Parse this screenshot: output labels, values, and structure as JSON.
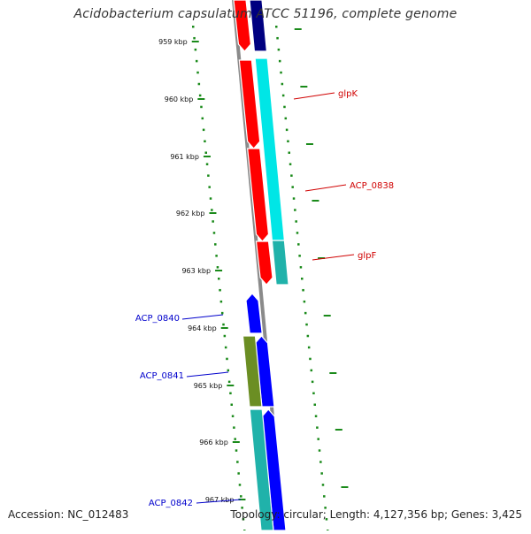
{
  "title": "Acidobacterium capsulatum ATCC 51196, complete genome",
  "footer": {
    "accession": "Accession: NC_012483",
    "summary": "Topology: circular; Length: 4,127,356 bp; Genes: 3,425"
  },
  "colors": {
    "backbone": "#8a8a8a",
    "tick": "#1a8a1a",
    "forward_red": "#ff0000",
    "forward_label": "#d00000",
    "reverse_blue": "#0000ff",
    "reverse_label": "#0000cc",
    "navy": "#000080",
    "cyan": "#00e6e6",
    "teal": "#20b2aa",
    "olive": "#6b8e23"
  },
  "ticks": [
    "959 kbp",
    "960 kbp",
    "961 kbp",
    "962 kbp",
    "963 kbp",
    "964 kbp",
    "965 kbp",
    "966 kbp",
    "967 kbp"
  ],
  "gene_labels": [
    {
      "id": "glpK",
      "text": "glpK",
      "side": "right",
      "strand": "forward"
    },
    {
      "id": "acp0838",
      "text": "ACP_0838",
      "side": "right",
      "strand": "forward"
    },
    {
      "id": "glpF",
      "text": "glpF",
      "side": "right",
      "strand": "forward"
    },
    {
      "id": "acp0840",
      "text": "ACP_0840",
      "side": "left",
      "strand": "reverse"
    },
    {
      "id": "acp0841",
      "text": "ACP_0841",
      "side": "left",
      "strand": "reverse"
    },
    {
      "id": "acp0842",
      "text": "ACP_0842",
      "side": "left",
      "strand": "reverse"
    }
  ]
}
